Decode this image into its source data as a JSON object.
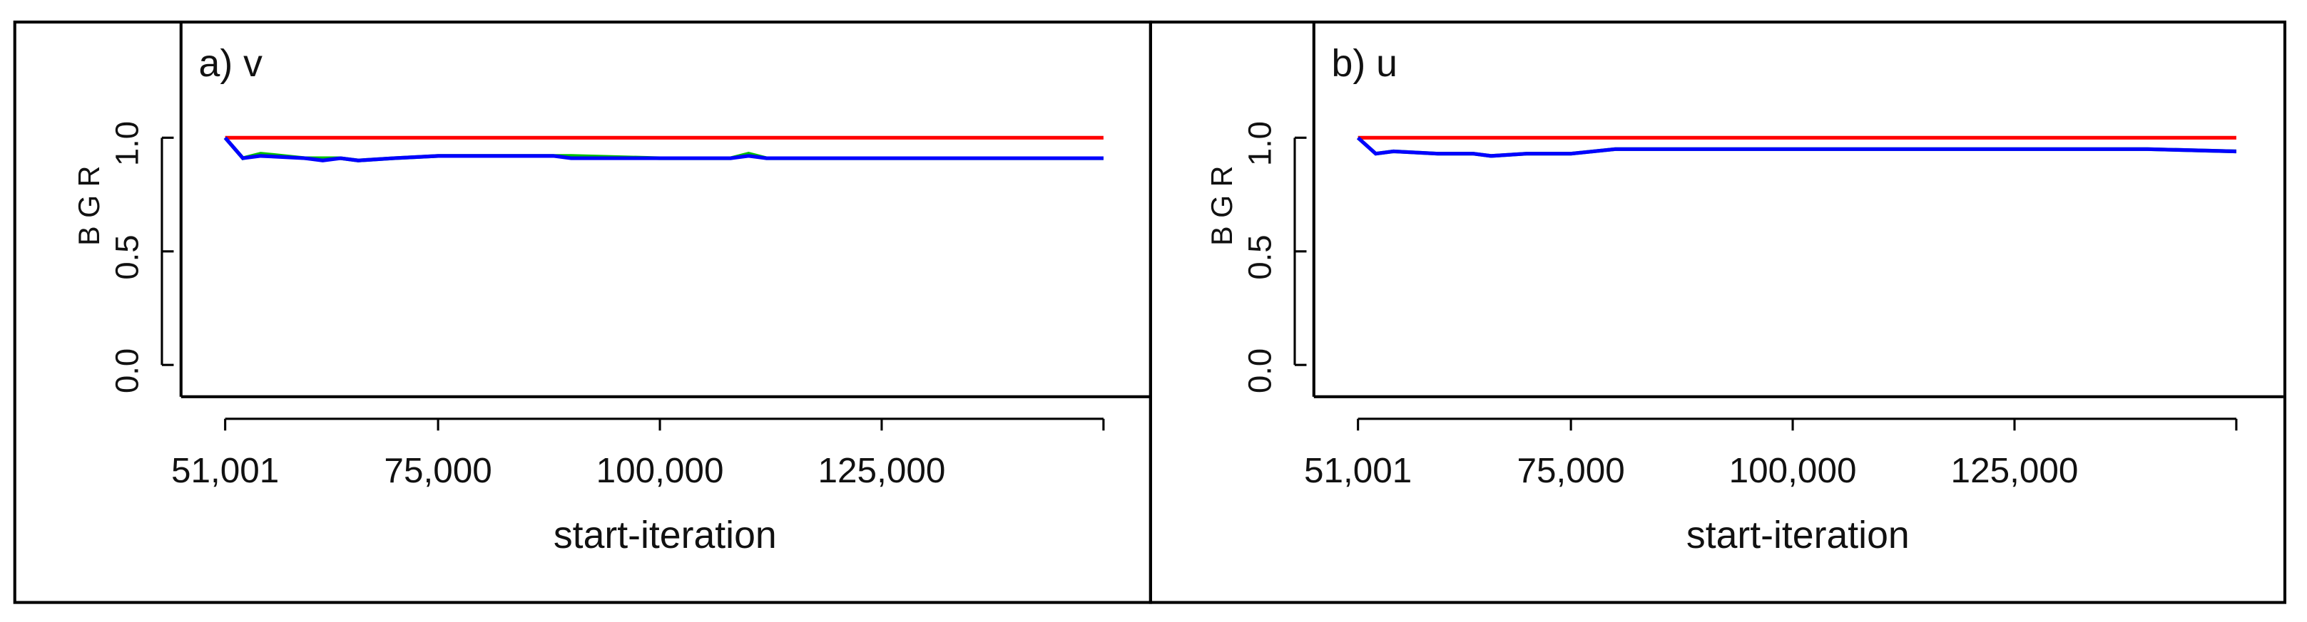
{
  "chart_data": [
    {
      "type": "line",
      "title": "a) v",
      "x_label": "start-iteration",
      "y_label": "B G R",
      "x": [
        51001,
        53000,
        55000,
        60000,
        62000,
        64000,
        66000,
        70000,
        75000,
        80000,
        88000,
        90000,
        100000,
        108000,
        110000,
        112000,
        120000,
        130000,
        140000,
        150000
      ],
      "series": [
        {
          "color": "#ff0000",
          "values": [
            1.0,
            1.0,
            1.0,
            1.0,
            1.0,
            1.0,
            1.0,
            1.0,
            1.0,
            1.0,
            1.0,
            1.0,
            1.0,
            1.0,
            1.0,
            1.0,
            1.0,
            1.0,
            1.0,
            1.0
          ]
        },
        {
          "color": "#00c000",
          "values": [
            1.0,
            0.91,
            0.93,
            0.91,
            0.91,
            0.91,
            0.9,
            0.91,
            0.92,
            0.92,
            0.92,
            0.92,
            0.91,
            0.91,
            0.93,
            0.91,
            0.91,
            0.91,
            0.91,
            0.91
          ]
        },
        {
          "color": "#0000ff",
          "values": [
            1.0,
            0.91,
            0.92,
            0.91,
            0.9,
            0.91,
            0.9,
            0.91,
            0.92,
            0.92,
            0.92,
            0.91,
            0.91,
            0.91,
            0.92,
            0.91,
            0.91,
            0.91,
            0.91,
            0.91
          ]
        }
      ],
      "xlim": [
        51001,
        150000
      ],
      "xticks": [
        {
          "value": 51001,
          "label": "51,001"
        },
        {
          "value": 75000,
          "label": "75,000"
        },
        {
          "value": 100000,
          "label": "100,000"
        },
        {
          "value": 125000,
          "label": "125,000"
        }
      ],
      "ylim": [
        -0.14,
        1.49
      ],
      "yticks": [
        {
          "value": 0,
          "label": "0.0"
        },
        {
          "value": 0.5,
          "label": "0.5"
        },
        {
          "value": 1,
          "label": "1.0"
        }
      ]
    },
    {
      "type": "line",
      "title": "b) u",
      "x_label": "start-iteration",
      "y_label": "B G R",
      "x": [
        51001,
        53000,
        55000,
        60000,
        62000,
        64000,
        66000,
        70000,
        75000,
        80000,
        88000,
        90000,
        100000,
        108000,
        110000,
        112000,
        120000,
        130000,
        140000,
        150000
      ],
      "series": [
        {
          "color": "#ff0000",
          "values": [
            1.0,
            1.0,
            1.0,
            1.0,
            1.0,
            1.0,
            1.0,
            1.0,
            1.0,
            1.0,
            1.0,
            1.0,
            1.0,
            1.0,
            1.0,
            1.0,
            1.0,
            1.0,
            1.0,
            1.0
          ]
        },
        {
          "color": "#00c000",
          "values": [
            1.0,
            0.93,
            0.94,
            0.93,
            0.93,
            0.93,
            0.92,
            0.93,
            0.93,
            0.95,
            0.95,
            0.95,
            0.95,
            0.95,
            0.95,
            0.95,
            0.95,
            0.95,
            0.95,
            0.94
          ]
        },
        {
          "color": "#0000ff",
          "values": [
            1.0,
            0.93,
            0.94,
            0.93,
            0.93,
            0.93,
            0.92,
            0.93,
            0.93,
            0.95,
            0.95,
            0.95,
            0.95,
            0.95,
            0.95,
            0.95,
            0.95,
            0.95,
            0.95,
            0.94
          ]
        }
      ],
      "xlim": [
        51001,
        150000
      ],
      "xticks": [
        {
          "value": 51001,
          "label": "51,001"
        },
        {
          "value": 75000,
          "label": "75,000"
        },
        {
          "value": 100000,
          "label": "100,000"
        },
        {
          "value": 125000,
          "label": "125,000"
        }
      ],
      "ylim": [
        -0.14,
        1.49
      ],
      "yticks": [
        {
          "value": 0,
          "label": "0.0"
        },
        {
          "value": 0.5,
          "label": "0.5"
        },
        {
          "value": 1,
          "label": "1.0"
        }
      ]
    }
  ]
}
